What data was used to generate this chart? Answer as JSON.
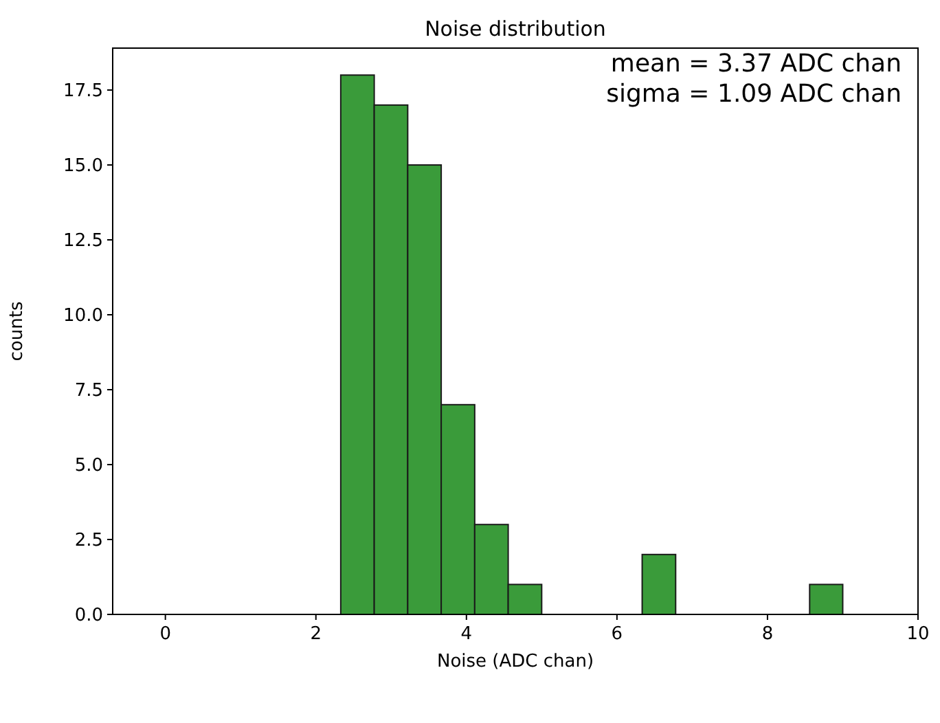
{
  "chart_data": {
    "type": "histogram",
    "title": "Noise distribution",
    "xlabel": "Noise (ADC chan)",
    "ylabel": "counts",
    "bins": [
      2.33,
      2.775,
      3.22,
      3.665,
      4.11,
      4.555,
      5.0,
      6.335,
      6.78,
      8.56,
      9.0
    ],
    "values": [
      18,
      17,
      15,
      7,
      3,
      1,
      0,
      2,
      0,
      1
    ],
    "color": "#3a9b3a",
    "xlim": [
      -0.7,
      10
    ],
    "xticks": [
      0,
      2,
      4,
      6,
      8,
      10
    ],
    "ylim": [
      0,
      18.9
    ],
    "yticks": [
      {
        "value": 0,
        "label": "0.0"
      },
      {
        "value": 2.5,
        "label": "2.5"
      },
      {
        "value": 5,
        "label": "5.0"
      },
      {
        "value": 7.5,
        "label": "7.5"
      },
      {
        "value": 10,
        "label": "10.0"
      },
      {
        "value": 12.5,
        "label": "12.5"
      },
      {
        "value": 15,
        "label": "15.0"
      },
      {
        "value": 17.5,
        "label": "17.5"
      }
    ],
    "grid": false,
    "annotations": [
      "mean = 3.37 ADC chan",
      "sigma = 1.09 ADC chan"
    ]
  }
}
